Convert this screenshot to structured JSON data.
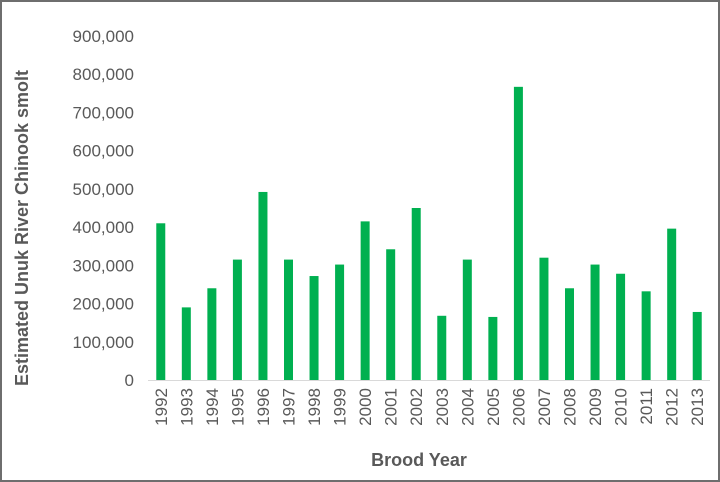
{
  "chart_data": {
    "type": "bar",
    "title": "",
    "xlabel": "Brood Year",
    "ylabel": "Estimated Unuk River Chinook smolt",
    "ylim": [
      0,
      900000
    ],
    "y_ticks": [
      "0",
      "100,000",
      "200,000",
      "300,000",
      "400,000",
      "500,000",
      "600,000",
      "700,000",
      "800,000",
      "900,000"
    ],
    "grid": false,
    "legend": "none",
    "bar_color": "#00B050",
    "categories": [
      "1992",
      "1993",
      "1994",
      "1995",
      "1996",
      "1997",
      "1998",
      "1999",
      "2000",
      "2001",
      "2002",
      "2003",
      "2004",
      "2005",
      "2006",
      "2007",
      "2008",
      "2009",
      "2010",
      "2011",
      "2012",
      "2013"
    ],
    "values": [
      410000,
      190000,
      240000,
      315000,
      492000,
      315000,
      272000,
      302000,
      415000,
      342000,
      450000,
      168000,
      315000,
      165000,
      767000,
      320000,
      240000,
      302000,
      278000,
      232000,
      396000,
      178000
    ]
  }
}
